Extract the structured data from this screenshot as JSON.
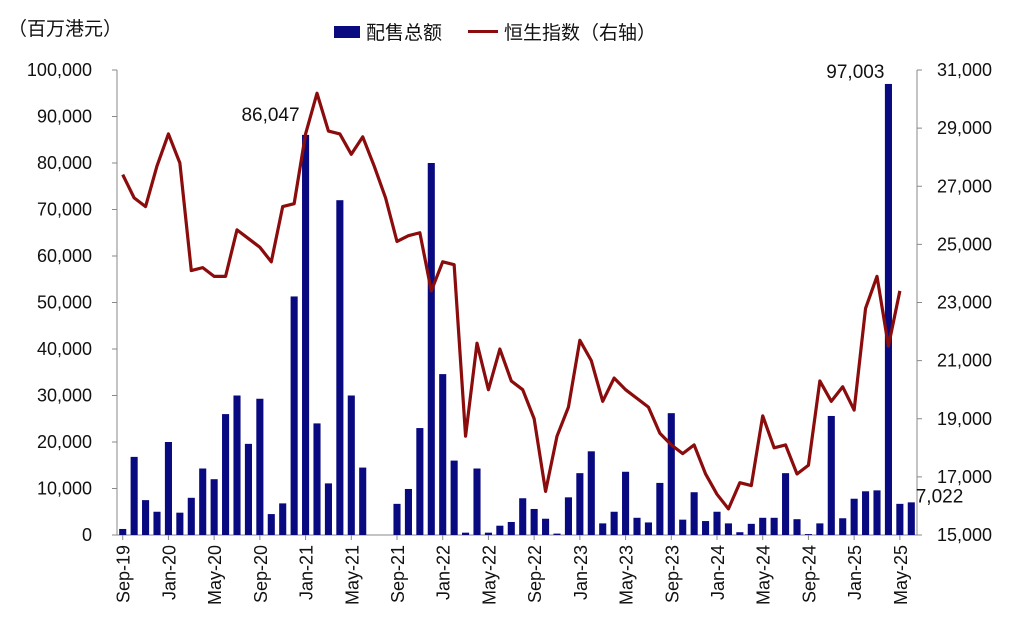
{
  "unit_label": "（百万港元）",
  "legend": {
    "bar_label": "配售总额",
    "line_label": "恒生指数（右轴）"
  },
  "colors": {
    "bar": "#0a0a80",
    "line": "#8b0c0c"
  },
  "chart_data": {
    "type": "bar+line",
    "x_tick_labels": [
      "Sep-19",
      "Jan-20",
      "May-20",
      "Sep-20",
      "Jan-21",
      "May-21",
      "Sep-21",
      "Jan-22",
      "May-22",
      "Sep-22",
      "Jan-23",
      "May-23",
      "Sep-23",
      "Jan-24",
      "May-24",
      "Sep-24",
      "Jan-25",
      "May-25"
    ],
    "left_axis": {
      "ylim": [
        0,
        100000
      ],
      "ticks": [
        0,
        10000,
        20000,
        30000,
        40000,
        50000,
        60000,
        70000,
        80000,
        90000,
        100000
      ],
      "tick_labels": [
        "0",
        "10,000",
        "20,000",
        "30,000",
        "40,000",
        "50,000",
        "60,000",
        "70,000",
        "80,000",
        "90,000",
        "100,000"
      ]
    },
    "right_axis": {
      "ylim": [
        15000,
        31000
      ],
      "ticks": [
        15000,
        17000,
        19000,
        21000,
        23000,
        25000,
        27000,
        29000,
        31000
      ],
      "tick_labels": [
        "15,000",
        "17,000",
        "19,000",
        "21,000",
        "23,000",
        "25,000",
        "27,000",
        "29,000",
        "31,000"
      ]
    },
    "series": [
      {
        "name": "配售总额",
        "type": "bar",
        "axis": "left",
        "values": [
          1300,
          16800,
          7500,
          5000,
          20000,
          4800,
          8000,
          14300,
          12000,
          26000,
          30000,
          19600,
          29300,
          4500,
          6800,
          51300,
          86047,
          24000,
          11100,
          72000,
          30000,
          14500,
          0,
          0,
          6700,
          9900,
          23000,
          80000,
          34600,
          16000,
          500,
          14300,
          500,
          2000,
          2800,
          7900,
          5600,
          3500,
          300,
          8100,
          13300,
          18000,
          2500,
          5000,
          13600,
          3700,
          2700,
          11200,
          26200,
          3300,
          9200,
          3000,
          5000,
          2500,
          600,
          2400,
          3700,
          3700,
          13300,
          3400,
          200,
          2500,
          25600,
          3600,
          7800,
          9400,
          9600,
          97003,
          6700,
          7022
        ]
      },
      {
        "name": "恒生指数（右轴）",
        "type": "line",
        "axis": "right",
        "values": [
          27400,
          26600,
          26300,
          27700,
          28800,
          27800,
          24100,
          24200,
          23900,
          23900,
          25500,
          25200,
          24900,
          24400,
          26300,
          26400,
          28800,
          30200,
          28900,
          28800,
          28100,
          28700,
          27700,
          26600,
          25100,
          25300,
          25400,
          23400,
          24400,
          24300,
          18400,
          21600,
          20000,
          21400,
          20300,
          20000,
          19000,
          16500,
          18400,
          19400,
          21700,
          21000,
          19600,
          20400,
          20000,
          19700,
          19400,
          18500,
          18100,
          17800,
          18100,
          17100,
          16400,
          15900,
          16800,
          16700,
          19100,
          18000,
          18100,
          17100,
          17400,
          20300,
          19600,
          20100,
          19300,
          22800,
          23900,
          21500,
          23400
        ]
      }
    ],
    "annotations": [
      {
        "text": "86,047",
        "series": "配售总额",
        "index": 16
      },
      {
        "text": "97,003",
        "series": "配售总额",
        "index": 67
      },
      {
        "text": "7,022",
        "series": "配售总额",
        "index": 69
      }
    ],
    "grid": false
  }
}
